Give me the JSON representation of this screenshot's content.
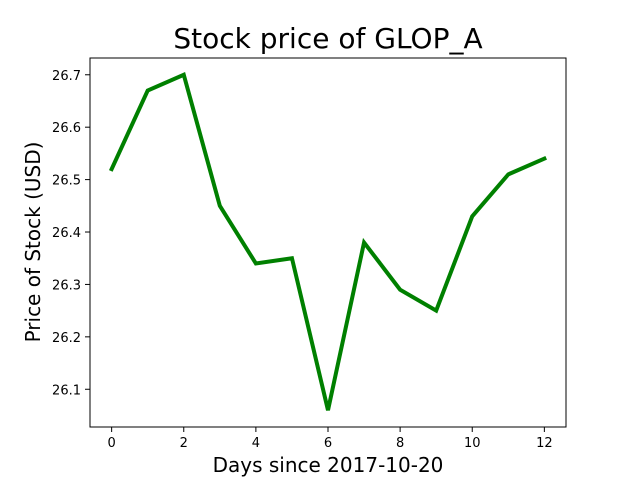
{
  "chart_data": {
    "type": "line",
    "title": "Stock price of GLOP_A",
    "xlabel": "Days since 2017-10-20",
    "ylabel": "Price of Stock (USD)",
    "x": [
      0,
      1,
      2,
      3,
      4,
      5,
      6,
      7,
      8,
      9,
      10,
      11,
      12
    ],
    "series": [
      {
        "values": [
          26.52,
          26.67,
          26.7,
          26.45,
          26.34,
          26.35,
          26.06,
          26.38,
          26.29,
          26.25,
          26.43,
          26.51,
          26.54
        ],
        "color": "#008000"
      }
    ],
    "xlim": [
      -0.6,
      12.6
    ],
    "ylim": [
      26.028,
      26.732
    ],
    "xticks": [
      0,
      2,
      4,
      6,
      8,
      10,
      12
    ],
    "xtick_labels": [
      "0",
      "2",
      "4",
      "6",
      "8",
      "10",
      "12"
    ],
    "yticks": [
      26.1,
      26.2,
      26.3,
      26.4,
      26.5,
      26.6,
      26.7
    ],
    "ytick_labels": [
      "26.1",
      "26.2",
      "26.3",
      "26.4",
      "26.5",
      "26.6",
      "26.7"
    ],
    "grid": false,
    "legend": "none"
  }
}
